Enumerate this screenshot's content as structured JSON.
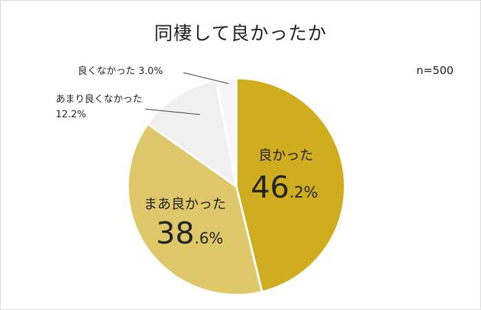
{
  "title": "同棲して良かったか",
  "sample_size": "n=500",
  "chart_data": {
    "type": "pie",
    "title": "同棲して良かったか",
    "start_angle_deg": 0,
    "direction": "clockwise",
    "slices": [
      {
        "label": "良かった",
        "value": 46.2,
        "display_num": "46",
        "display_dec": ".2%",
        "color": "#cfad1f",
        "label_style": "inside"
      },
      {
        "label": "まあ良かった",
        "value": 38.6,
        "display_num": "38",
        "display_dec": ".6%",
        "color": "#dfc86a",
        "label_style": "inside"
      },
      {
        "label": "あまり良くなかった",
        "value": 12.2,
        "display_pct": "12.2%",
        "color": "#f0f0f0",
        "label_style": "outside"
      },
      {
        "label": "良くなかった",
        "value": 3.0,
        "display_pct": "3.0%",
        "color": "#f7f7f7",
        "label_style": "outside"
      }
    ]
  }
}
